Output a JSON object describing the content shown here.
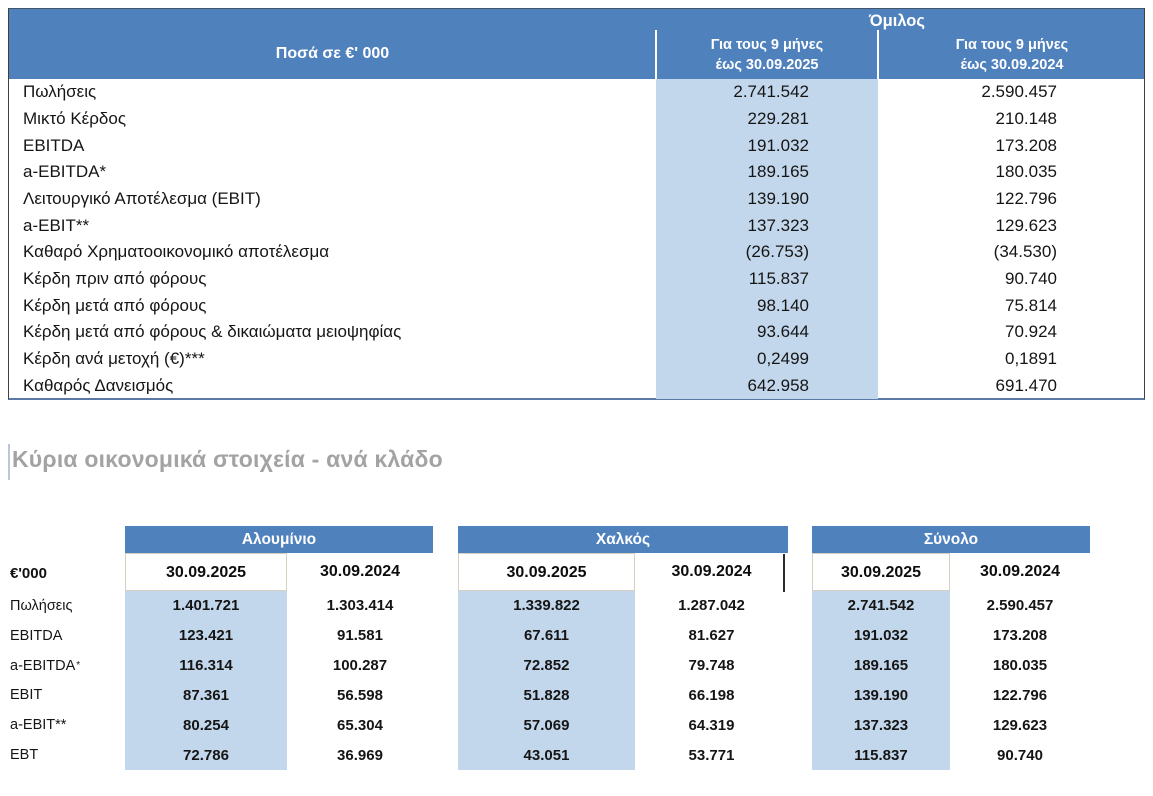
{
  "colors": {
    "header_blue": "#4f81bd",
    "highlight_blue": "#c3d7ec",
    "title_gray": "#a3a3a3",
    "header_text": "#ffffff"
  },
  "group_table": {
    "unit_label": "Ποσά  σε €' 000",
    "group_header": "Όμιλος",
    "col_2025_line1": "Για τους 9 μήνες",
    "col_2025_line2": "έως 30.09.2025",
    "col_2024_line1": "Για τους 9 μήνες",
    "col_2024_line2": "έως 30.09.2024",
    "rows": [
      {
        "label": "Πωλήσεις",
        "v2025": "2.741.542",
        "v2024": "2.590.457"
      },
      {
        "label": "Μικτό Κέρδος",
        "v2025": "229.281",
        "v2024": "210.148"
      },
      {
        "label": "EBITDA",
        "v2025": "191.032",
        "v2024": "173.208"
      },
      {
        "label": "a-EBITDA*",
        "v2025": "189.165",
        "v2024": "180.035"
      },
      {
        "label": "Λειτουργικό Αποτέλεσμα (EBIT)",
        "v2025": "139.190",
        "v2024": "122.796"
      },
      {
        "label": "a-EBIT**",
        "v2025": "137.323",
        "v2024": "129.623"
      },
      {
        "label": "Καθαρό Χρηματοοικονομικό αποτέλεσμα",
        "v2025": "(26.753)",
        "v2024": "(34.530)"
      },
      {
        "label": "Κέρδη πριν από φόρους",
        "v2025": "115.837",
        "v2024": "90.740"
      },
      {
        "label": "Κέρδη μετά από φόρους",
        "v2025": "98.140",
        "v2024": "75.814"
      },
      {
        "label": "Κέρδη μετά από φόρους & δικαιώματα μειοψηφίας",
        "v2025": "93.644",
        "v2024": "70.924"
      },
      {
        "label": "Κέρδη ανά μετοχή (€)***",
        "v2025": "0,2499",
        "v2024": "0,1891"
      },
      {
        "label": "Καθαρός Δανεισμός",
        "v2025": "642.958",
        "v2024": "691.470"
      }
    ]
  },
  "section_title": "Κύρια οικονομικά στοιχεία - ανά κλάδο",
  "segment_tables": {
    "unit_label": "€'000",
    "row_labels": [
      {
        "text": "Πωλήσεις",
        "sup": ""
      },
      {
        "text": "EBITDA",
        "sup": ""
      },
      {
        "text": "a-EBITDA",
        "sup": "*"
      },
      {
        "text": "EBIT",
        "sup": ""
      },
      {
        "text": "a-EBIT**",
        "sup": ""
      },
      {
        "text": "EBT",
        "sup": ""
      }
    ],
    "groups": [
      {
        "name": "Αλουμίνιο",
        "col_2025": "30.09.2025",
        "col_2024": "30.09.2024",
        "values_2025": [
          "1.401.721",
          "123.421",
          "116.314",
          "87.361",
          "80.254",
          "72.786"
        ],
        "values_2024": [
          "1.303.414",
          "91.581",
          "100.287",
          "56.598",
          "65.304",
          "36.969"
        ]
      },
      {
        "name": "Χαλκός",
        "col_2025": "30.09.2025",
        "col_2024": "30.09.2024",
        "values_2025": [
          "1.339.822",
          "67.611",
          "72.852",
          "51.828",
          "57.069",
          "43.051"
        ],
        "values_2024": [
          "1.287.042",
          "81.627",
          "79.748",
          "66.198",
          "64.319",
          "53.771"
        ]
      },
      {
        "name": "Σύνολο",
        "col_2025": "30.09.2025",
        "col_2024": "30.09.2024",
        "values_2025": [
          "2.741.542",
          "191.032",
          "189.165",
          "139.190",
          "137.323",
          "115.837"
        ],
        "values_2024": [
          "2.590.457",
          "173.208",
          "180.035",
          "122.796",
          "129.623",
          "90.740"
        ]
      }
    ]
  }
}
